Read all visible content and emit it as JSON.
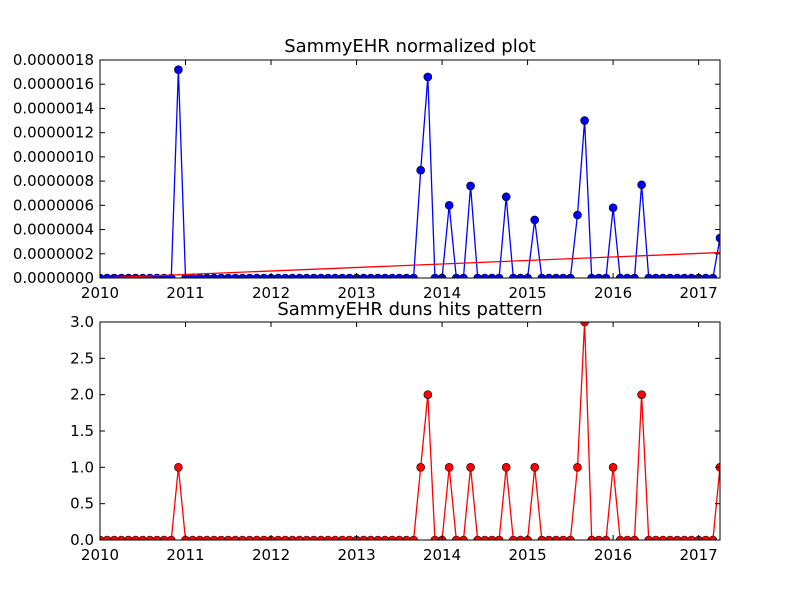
{
  "chart_data": [
    {
      "type": "line",
      "title": "SammyEHR normalized plot",
      "xlabel": "",
      "ylabel": "",
      "xlim": [
        2010.0,
        2017.25
      ],
      "ylim": [
        0,
        1.8e-06
      ],
      "x_ticks": [
        2010,
        2011,
        2012,
        2013,
        2014,
        2015,
        2016,
        2017
      ],
      "x_tick_labels": [
        "2010",
        "2011",
        "2012",
        "2013",
        "2014",
        "2015",
        "2016",
        "2017"
      ],
      "y_ticks": [
        0,
        2e-07,
        4e-07,
        6e-07,
        8e-07,
        1e-06,
        1.2e-06,
        1.4e-06,
        1.6e-06,
        1.8e-06
      ],
      "y_tick_labels": [
        "0.0000000",
        "0.0000002",
        "0.0000004",
        "0.0000006",
        "0.0000008",
        "0.0000010",
        "0.0000012",
        "0.0000014",
        "0.0000016",
        "0.0000018"
      ],
      "grid": false,
      "series": [
        {
          "color": "#0000ff",
          "marker": "circle",
          "x_start": 2010.0,
          "x_step_months": 1,
          "values": [
            0,
            0,
            0,
            0,
            0,
            0,
            0,
            0,
            0,
            0,
            0,
            1.72e-06,
            0,
            0,
            0,
            0,
            0,
            0,
            0,
            0,
            0,
            0,
            0,
            0,
            0,
            0,
            0,
            0,
            0,
            0,
            0,
            0,
            0,
            0,
            0,
            0,
            0,
            0,
            0,
            0,
            0,
            0,
            0,
            0,
            0,
            8.9e-07,
            1.66e-06,
            0,
            0,
            6e-07,
            0,
            0,
            7.6e-07,
            0,
            0,
            0,
            0,
            6.7e-07,
            0,
            0,
            0,
            4.8e-07,
            0,
            0,
            0,
            0,
            0,
            5.2e-07,
            1.3e-06,
            0,
            0,
            0,
            5.8e-07,
            0,
            0,
            0,
            7.7e-07,
            0,
            0,
            0,
            0,
            0,
            0,
            0,
            0,
            0,
            0,
            3.3e-07
          ]
        },
        {
          "color": "#ff0000",
          "marker": "none",
          "type": "trend-line",
          "x": [
            2010.0,
            2017.25
          ],
          "values": [
            0.0,
            2.1e-07
          ]
        }
      ]
    },
    {
      "type": "line",
      "title": "SammyEHR duns hits pattern",
      "xlabel": "",
      "ylabel": "",
      "xlim": [
        2010.0,
        2017.25
      ],
      "ylim": [
        0,
        3.0
      ],
      "x_ticks": [
        2010,
        2011,
        2012,
        2013,
        2014,
        2015,
        2016,
        2017
      ],
      "x_tick_labels": [
        "2010",
        "2011",
        "2012",
        "2013",
        "2014",
        "2015",
        "2016",
        "2017"
      ],
      "y_ticks": [
        0,
        0.5,
        1.0,
        1.5,
        2.0,
        2.5,
        3.0
      ],
      "y_tick_labels": [
        "0.0",
        "0.5",
        "1.0",
        "1.5",
        "2.0",
        "2.5",
        "3.0"
      ],
      "grid": false,
      "series": [
        {
          "color": "#ff0000",
          "marker": "circle",
          "x_start": 2010.0,
          "x_step_months": 1,
          "values": [
            0,
            0,
            0,
            0,
            0,
            0,
            0,
            0,
            0,
            0,
            0,
            1,
            0,
            0,
            0,
            0,
            0,
            0,
            0,
            0,
            0,
            0,
            0,
            0,
            0,
            0,
            0,
            0,
            0,
            0,
            0,
            0,
            0,
            0,
            0,
            0,
            0,
            0,
            0,
            0,
            0,
            0,
            0,
            0,
            0,
            1,
            2,
            0,
            0,
            1,
            0,
            0,
            1,
            0,
            0,
            0,
            0,
            1,
            0,
            0,
            0,
            1,
            0,
            0,
            0,
            0,
            0,
            1,
            3,
            0,
            0,
            0,
            1,
            0,
            0,
            0,
            2,
            0,
            0,
            0,
            0,
            0,
            0,
            0,
            0,
            0,
            0,
            1
          ]
        }
      ]
    }
  ]
}
